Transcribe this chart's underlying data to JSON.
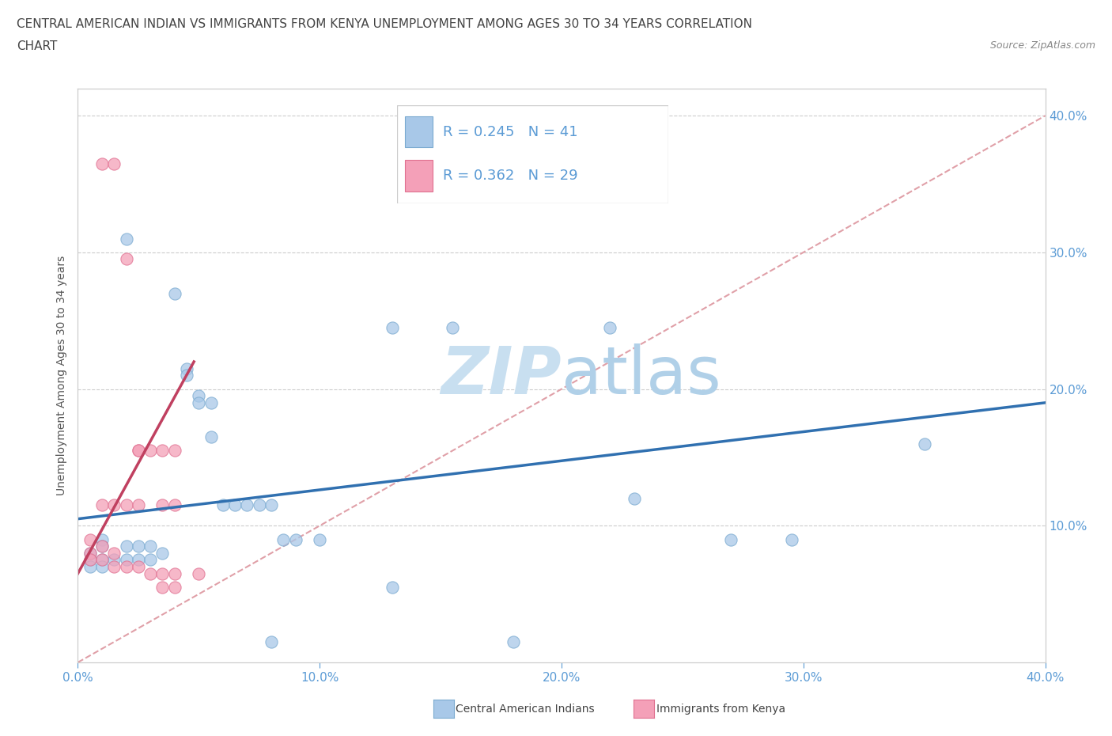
{
  "title_line1": "CENTRAL AMERICAN INDIAN VS IMMIGRANTS FROM KENYA UNEMPLOYMENT AMONG AGES 30 TO 34 YEARS CORRELATION",
  "title_line2": "CHART",
  "source": "Source: ZipAtlas.com",
  "ylabel": "Unemployment Among Ages 30 to 34 years",
  "legend_label1": "Central American Indians",
  "legend_label2": "Immigrants from Kenya",
  "r1": "0.245",
  "n1": "41",
  "r2": "0.362",
  "n2": "29",
  "blue_color": "#a8c8e8",
  "blue_edge_color": "#7aaad0",
  "pink_color": "#f4a0b8",
  "pink_edge_color": "#e07090",
  "blue_line_color": "#3070b0",
  "pink_line_color": "#c04060",
  "diag_line_color": "#e0a0a8",
  "blue_scatter": [
    [
      0.02,
      0.31
    ],
    [
      0.04,
      0.27
    ],
    [
      0.045,
      0.215
    ],
    [
      0.045,
      0.21
    ],
    [
      0.05,
      0.195
    ],
    [
      0.05,
      0.19
    ],
    [
      0.055,
      0.19
    ],
    [
      0.055,
      0.165
    ],
    [
      0.06,
      0.115
    ],
    [
      0.065,
      0.115
    ],
    [
      0.07,
      0.115
    ],
    [
      0.075,
      0.115
    ],
    [
      0.08,
      0.115
    ],
    [
      0.085,
      0.09
    ],
    [
      0.09,
      0.09
    ],
    [
      0.1,
      0.09
    ],
    [
      0.01,
      0.09
    ],
    [
      0.01,
      0.085
    ],
    [
      0.02,
      0.085
    ],
    [
      0.025,
      0.085
    ],
    [
      0.03,
      0.085
    ],
    [
      0.035,
      0.08
    ],
    [
      0.005,
      0.08
    ],
    [
      0.005,
      0.075
    ],
    [
      0.01,
      0.075
    ],
    [
      0.015,
      0.075
    ],
    [
      0.02,
      0.075
    ],
    [
      0.025,
      0.075
    ],
    [
      0.03,
      0.075
    ],
    [
      0.005,
      0.07
    ],
    [
      0.01,
      0.07
    ],
    [
      0.13,
      0.245
    ],
    [
      0.155,
      0.245
    ],
    [
      0.22,
      0.245
    ],
    [
      0.23,
      0.12
    ],
    [
      0.27,
      0.09
    ],
    [
      0.295,
      0.09
    ],
    [
      0.35,
      0.16
    ],
    [
      0.13,
      0.055
    ],
    [
      0.08,
      0.015
    ],
    [
      0.18,
      0.015
    ]
  ],
  "pink_scatter": [
    [
      0.01,
      0.365
    ],
    [
      0.015,
      0.365
    ],
    [
      0.02,
      0.295
    ],
    [
      0.025,
      0.155
    ],
    [
      0.025,
      0.155
    ],
    [
      0.03,
      0.155
    ],
    [
      0.035,
      0.155
    ],
    [
      0.04,
      0.155
    ],
    [
      0.01,
      0.115
    ],
    [
      0.015,
      0.115
    ],
    [
      0.02,
      0.115
    ],
    [
      0.025,
      0.115
    ],
    [
      0.035,
      0.115
    ],
    [
      0.04,
      0.115
    ],
    [
      0.005,
      0.09
    ],
    [
      0.01,
      0.085
    ],
    [
      0.015,
      0.08
    ],
    [
      0.005,
      0.08
    ],
    [
      0.005,
      0.075
    ],
    [
      0.01,
      0.075
    ],
    [
      0.015,
      0.07
    ],
    [
      0.02,
      0.07
    ],
    [
      0.025,
      0.07
    ],
    [
      0.03,
      0.065
    ],
    [
      0.035,
      0.065
    ],
    [
      0.04,
      0.065
    ],
    [
      0.05,
      0.065
    ],
    [
      0.035,
      0.055
    ],
    [
      0.04,
      0.055
    ]
  ],
  "xmin": 0.0,
  "xmax": 0.4,
  "ymin": 0.0,
  "ymax": 0.42,
  "xticks": [
    0.0,
    0.1,
    0.2,
    0.3,
    0.4
  ],
  "yticks": [
    0.1,
    0.2,
    0.3,
    0.4
  ],
  "watermark_zip": "ZIP",
  "watermark_atlas": "atlas",
  "watermark_color_zip": "#c8dff0",
  "watermark_color_atlas": "#b0d0e8",
  "bg_color": "#ffffff"
}
